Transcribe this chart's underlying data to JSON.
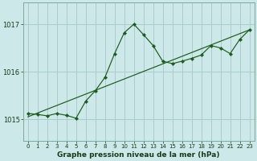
{
  "xlabel": "Graphe pression niveau de la mer (hPa)",
  "bg_color": "#cce8e8",
  "grid_color": "#aacccc",
  "line_color": "#1a5c1a",
  "text_color": "#1a3a1a",
  "yticks": [
    1015,
    1016,
    1017
  ],
  "ylim": [
    1014.55,
    1017.45
  ],
  "xlim": [
    -0.5,
    23.5
  ],
  "xtick_labels": [
    "0",
    "1",
    "2",
    "3",
    "4",
    "5",
    "6",
    "7",
    "8",
    "9",
    "10",
    "11",
    "12",
    "13",
    "14",
    "15",
    "16",
    "17",
    "18",
    "19",
    "20",
    "21",
    "22",
    "23"
  ],
  "line1_x": [
    0,
    1,
    2,
    3,
    4,
    5,
    6,
    7,
    8,
    9,
    10,
    11,
    12,
    13,
    14,
    15,
    16,
    17,
    18,
    19,
    20,
    21,
    22,
    23
  ],
  "line1_y": [
    1015.12,
    1015.1,
    1015.07,
    1015.12,
    1015.08,
    1015.02,
    1015.38,
    1015.6,
    1015.88,
    1016.38,
    1016.82,
    1017.0,
    1016.78,
    1016.55,
    1016.22,
    1016.17,
    1016.22,
    1016.28,
    1016.35,
    1016.55,
    1016.5,
    1016.38,
    1016.68,
    1016.88
  ],
  "trend_x": [
    0,
    23
  ],
  "trend_y": [
    1015.05,
    1016.88
  ]
}
